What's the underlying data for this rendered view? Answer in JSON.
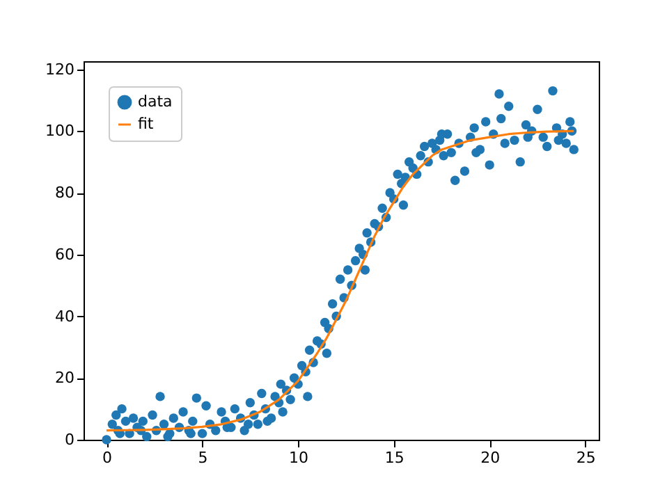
{
  "chart_data": {
    "type": "scatter",
    "xlim": [
      -1.2,
      25.7
    ],
    "ylim": [
      0,
      122.6
    ],
    "xticks": [
      0,
      5,
      10,
      15,
      20,
      25
    ],
    "yticks": [
      0,
      20,
      40,
      60,
      80,
      100,
      120
    ],
    "grid": false,
    "legend": "top left",
    "series": [
      {
        "name": "data",
        "marker": "circle",
        "color": "#1f77b4",
        "x": [
          0.0,
          0.3,
          0.5,
          0.6,
          0.8,
          1.0,
          1.2,
          1.4,
          1.6,
          1.9,
          2.1,
          2.4,
          2.6,
          2.8,
          3.0,
          3.3,
          3.5,
          3.8,
          4.0,
          4.3,
          4.5,
          4.7,
          5.0,
          5.2,
          5.4,
          5.7,
          6.0,
          6.2,
          6.5,
          6.7,
          7.0,
          7.2,
          7.5,
          7.7,
          7.9,
          8.1,
          8.3,
          8.6,
          8.8,
          9.0,
          9.2,
          9.4,
          9.6,
          9.8,
          10.0,
          10.2,
          10.4,
          10.6,
          10.8,
          11.0,
          11.2,
          11.4,
          11.6,
          11.8,
          12.0,
          12.2,
          12.4,
          12.6,
          12.8,
          13.0,
          13.2,
          13.4,
          13.6,
          13.8,
          14.0,
          14.2,
          14.4,
          14.6,
          14.8,
          15.0,
          15.2,
          15.4,
          15.6,
          15.8,
          16.0,
          16.2,
          16.4,
          16.6,
          16.8,
          17.0,
          17.2,
          17.4,
          17.6,
          17.8,
          18.0,
          18.2,
          18.4,
          18.7,
          19.0,
          19.2,
          19.5,
          19.8,
          20.0,
          20.2,
          20.5,
          20.8,
          21.0,
          21.3,
          21.6,
          21.9,
          22.2,
          22.5,
          22.8,
          23.0,
          23.3,
          23.5,
          23.8,
          24.0,
          24.2,
          24.4,
          0.7,
          1.8,
          3.2,
          4.4,
          6.3,
          7.4,
          8.4,
          9.1,
          10.5,
          11.5,
          13.5,
          15.5,
          17.5,
          19.3,
          20.6,
          22.0,
          23.6,
          24.3
        ],
        "values": [
          0,
          5,
          8,
          3,
          10,
          6,
          2,
          7,
          4,
          6,
          1,
          8,
          3,
          14,
          5,
          2,
          7,
          4,
          9,
          3,
          6,
          13.5,
          2,
          11,
          5,
          3,
          9,
          6,
          4,
          10,
          7,
          3,
          12,
          8,
          5,
          15,
          10,
          7,
          14,
          12,
          9,
          16,
          13,
          20,
          18,
          24,
          22,
          29,
          25,
          32,
          31,
          38,
          36,
          44,
          40,
          52,
          46,
          55,
          50,
          58,
          62,
          60,
          67,
          64,
          70,
          69,
          75,
          72,
          80,
          78,
          86,
          83,
          85,
          90,
          88,
          86,
          92,
          95,
          90,
          96,
          94,
          97,
          92,
          99,
          93,
          84,
          96,
          87,
          98,
          101,
          94,
          103,
          89,
          99,
          112,
          96,
          108,
          97,
          90,
          102,
          100,
          107,
          98,
          95,
          113,
          101,
          99,
          96,
          103,
          94,
          2,
          3,
          1,
          2,
          4,
          5,
          6,
          18,
          14,
          28,
          55,
          76,
          99,
          93,
          104,
          98,
          97,
          100
        ]
      },
      {
        "name": "fit",
        "type": "line",
        "marker": "none",
        "line_style": "solid",
        "color": "#ff7f0e",
        "x": [
          0,
          1,
          2,
          3,
          4,
          5,
          6,
          7,
          8,
          9,
          10,
          11,
          11.5,
          12,
          12.5,
          13,
          13.5,
          14,
          14.5,
          15,
          15.5,
          16,
          16.5,
          17,
          17.5,
          18,
          19,
          20,
          21,
          22,
          23,
          24.4
        ],
        "values": [
          3,
          3.1,
          3.2,
          3.4,
          3.7,
          4.2,
          5.0,
          6.5,
          9,
          13,
          19,
          28,
          33,
          39,
          45,
          52,
          59,
          66,
          72,
          77,
          82,
          86,
          89,
          92,
          94,
          95,
          97,
          98,
          99,
          99.5,
          99.8,
          100
        ]
      }
    ]
  }
}
